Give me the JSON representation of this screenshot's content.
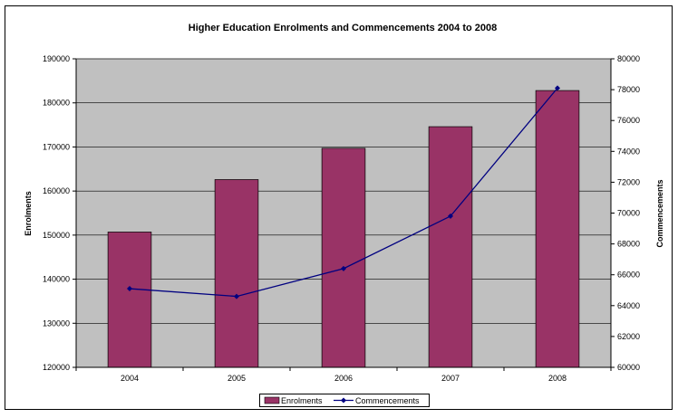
{
  "chart_data": {
    "type": "bar",
    "title": "Higher Education Enrolments and Commencements 2004 to 2008",
    "categories": [
      "2004",
      "2005",
      "2006",
      "2007",
      "2008"
    ],
    "series": [
      {
        "name": "Enrolments",
        "type": "bar",
        "axis": "left",
        "values": [
          150700,
          162600,
          169700,
          174600,
          182800
        ]
      },
      {
        "name": "Commencements",
        "type": "line",
        "axis": "right",
        "values": [
          65100,
          64600,
          66400,
          69800,
          78100
        ]
      }
    ],
    "ylabel": "Enrolments",
    "y2label": "Commencements",
    "ylim": [
      120000,
      190000
    ],
    "y2lim": [
      60000,
      80000
    ],
    "yticks": [
      "120000",
      "130000",
      "140000",
      "150000",
      "160000",
      "170000",
      "180000",
      "190000"
    ],
    "y2ticks": [
      "60000",
      "62000",
      "64000",
      "66000",
      "68000",
      "70000",
      "72000",
      "74000",
      "76000",
      "78000",
      "80000"
    ],
    "grid": true,
    "legend_position": "bottom",
    "colors": {
      "bar": "#993366",
      "line": "#000080",
      "plot_background": "#c0c0c0"
    }
  }
}
